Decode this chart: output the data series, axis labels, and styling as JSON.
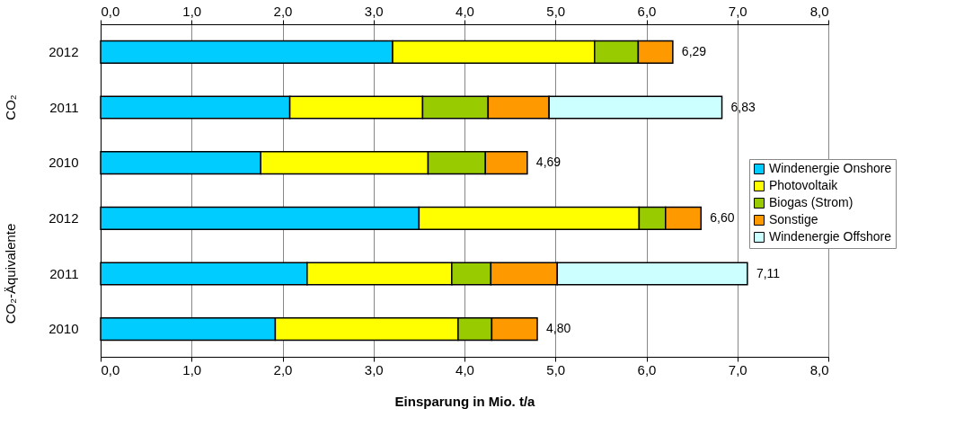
{
  "chart_data": {
    "type": "bar",
    "orientation": "horizontal",
    "stacked": true,
    "categories": [
      "2012",
      "2011",
      "2010",
      "2012",
      "2011",
      "2010"
    ],
    "series": [
      {
        "name": "Windenergie Onshore",
        "color": "#00ccff",
        "values": [
          3.21,
          2.08,
          1.76,
          3.5,
          2.27,
          1.92
        ]
      },
      {
        "name": "Photovoltaik",
        "color": "#ffff00",
        "values": [
          2.22,
          1.46,
          1.84,
          2.42,
          1.59,
          2.01
        ]
      },
      {
        "name": "Biogas (Strom)",
        "color": "#99cc00",
        "values": [
          0.48,
          0.72,
          0.63,
          0.29,
          0.43,
          0.37
        ]
      },
      {
        "name": "Sonstige",
        "color": "#ff9900",
        "values": [
          0.38,
          0.67,
          0.46,
          0.39,
          0.73,
          0.5
        ]
      },
      {
        "name": "Windenergie Offshore",
        "color": "#ccffff",
        "values": [
          null,
          1.9,
          null,
          null,
          2.09,
          null
        ]
      }
    ],
    "totals": [
      "6,29",
      "6,83",
      "4,69",
      "6,60",
      "7,11",
      "4,80"
    ],
    "annotations": [
      "CO₂",
      "CO₂-Äquivalente"
    ],
    "xlabel": "Einsparung in Mio. t/a",
    "xlim": [
      0,
      8
    ],
    "xticks": [
      {
        "value": 0,
        "label": "0,0"
      },
      {
        "value": 1,
        "label": "1,0"
      },
      {
        "value": 2,
        "label": "2,0"
      },
      {
        "value": 3,
        "label": "3,0"
      },
      {
        "value": 4,
        "label": "4,0"
      },
      {
        "value": 5,
        "label": "5,0"
      },
      {
        "value": 6,
        "label": "6,0"
      },
      {
        "value": 7,
        "label": "7,0"
      },
      {
        "value": 8,
        "label": "8,0"
      }
    ],
    "x2lim": [
      0,
      8
    ],
    "x2ticks": [
      {
        "value": 0,
        "label": "0,0"
      },
      {
        "value": 1,
        "label": "1,0"
      },
      {
        "value": 2,
        "label": "2,0"
      },
      {
        "value": 3,
        "label": "3,0"
      },
      {
        "value": 4,
        "label": "4,0"
      },
      {
        "value": 5,
        "label": "5,0"
      },
      {
        "value": 6,
        "label": "6,0"
      },
      {
        "value": 7,
        "label": "7,0"
      },
      {
        "value": 8,
        "label": "8,0"
      }
    ],
    "grid": "x",
    "legend": "right"
  }
}
